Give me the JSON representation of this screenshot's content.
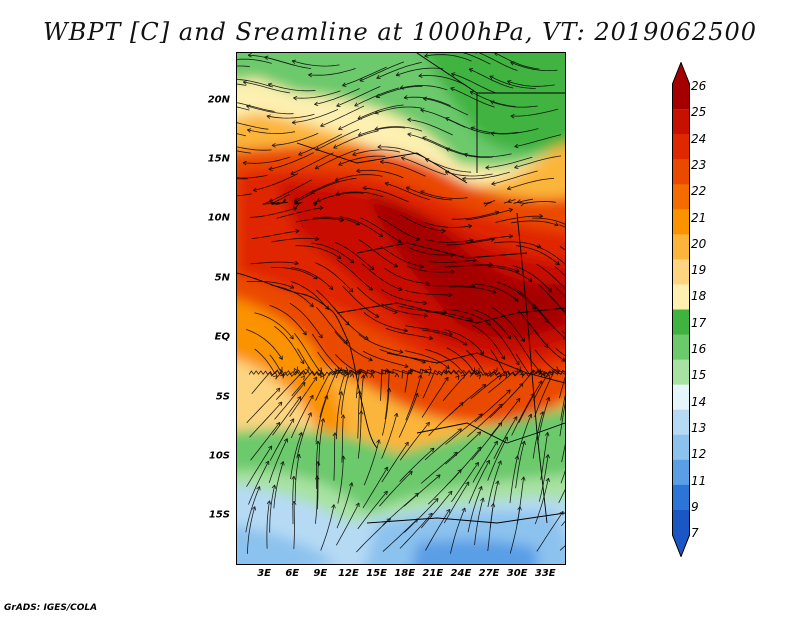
{
  "title": "WBPT [C] and Sreamline at 1000hPa, VT: 2019062500",
  "footer": "GrADS: IGES/COLA",
  "y_axis": {
    "labels": [
      "20N",
      "15N",
      "10N",
      "5N",
      "EQ",
      "5S",
      "10S",
      "15S"
    ],
    "latitudes": [
      20,
      15,
      10,
      5,
      0,
      -5,
      -10,
      -15
    ]
  },
  "x_axis": {
    "labels": [
      "3E",
      "6E",
      "9E",
      "12E",
      "15E",
      "18E",
      "21E",
      "24E",
      "27E",
      "30E",
      "33E"
    ],
    "longitudes": [
      3,
      6,
      9,
      12,
      15,
      18,
      21,
      24,
      27,
      30,
      33
    ]
  },
  "extent": {
    "lon_min": 0,
    "lon_max": 35,
    "lat_min": -19,
    "lat_max": 24
  },
  "colorbar": {
    "labels": [
      "26",
      "25",
      "24",
      "23",
      "22",
      "21",
      "20",
      "19",
      "18",
      "17",
      "16",
      "15",
      "14",
      "13",
      "12",
      "11",
      "9",
      "7"
    ],
    "colors": [
      "#a50000",
      "#c81000",
      "#e02800",
      "#ea4a00",
      "#f46b00",
      "#fb9200",
      "#fcb53a",
      "#fdd581",
      "#fdf0b0",
      "#3fb33f",
      "#6cc96c",
      "#a8e2a2",
      "#e4f6fa",
      "#b6daf4",
      "#8cc2ee",
      "#5a9ee6",
      "#2c74d8",
      "#1a57c4"
    ]
  },
  "legend_field": "WBPT [C]"
}
